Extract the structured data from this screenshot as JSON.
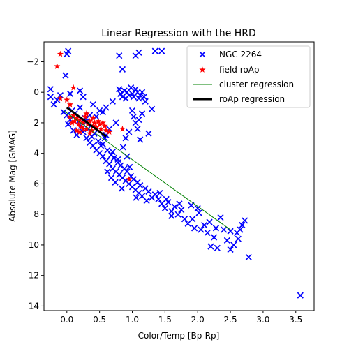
{
  "chart_data": {
    "type": "scatter",
    "title": "Linear Regression with the HRD",
    "xlabel": "Color/Temp [Bp-Rp]",
    "ylabel": "Absolute Mag [GMAG]",
    "xlim": [
      -0.35,
      3.78
    ],
    "ylim": [
      14.3,
      -3.3
    ],
    "y_inverted": true,
    "x_ticks": [
      0.0,
      0.5,
      1.0,
      1.5,
      2.0,
      2.5,
      3.0,
      3.5
    ],
    "x_tick_labels": [
      "0.0",
      "0.5",
      "1.0",
      "1.5",
      "2.0",
      "2.5",
      "3.0",
      "3.5"
    ],
    "y_ticks": [
      -2,
      0,
      2,
      4,
      6,
      8,
      10,
      12,
      14
    ],
    "y_tick_labels": [
      "−2",
      "0",
      "2",
      "4",
      "6",
      "8",
      "10",
      "12",
      "14"
    ],
    "grid": false,
    "legend": {
      "position": "top-right",
      "entries": [
        {
          "label": "NGC 2264",
          "marker": "x",
          "color": "#0000ff"
        },
        {
          "label": "field roAp",
          "marker": "star",
          "color": "#ff0000"
        },
        {
          "label": "cluster regression",
          "marker": "line",
          "color": "#008000"
        },
        {
          "label": "roAp regression",
          "marker": "thick-line",
          "color": "#000000"
        }
      ]
    },
    "series": [
      {
        "name": "NGC 2264",
        "marker": "x",
        "color": "#0000ff",
        "points": [
          [
            -0.25,
            -0.2
          ],
          [
            -0.25,
            0.3
          ],
          [
            -0.2,
            0.8
          ],
          [
            -0.15,
            0.5
          ],
          [
            -0.1,
            0.2
          ],
          [
            -0.05,
            1.3
          ],
          [
            -0.02,
            -1.1
          ],
          [
            0.0,
            -2.5
          ],
          [
            0.02,
            -2.7
          ],
          [
            0.05,
            0.1
          ],
          [
            0.0,
            1.5
          ],
          [
            0.02,
            2.1
          ],
          [
            0.05,
            1.8
          ],
          [
            0.08,
            1.2
          ],
          [
            0.1,
            2.5
          ],
          [
            0.12,
            1.4
          ],
          [
            0.15,
            2.8
          ],
          [
            0.18,
            1.9
          ],
          [
            0.2,
            -0.1
          ],
          [
            0.22,
            2.2
          ],
          [
            0.25,
            2.6
          ],
          [
            0.28,
            1.7
          ],
          [
            0.3,
            3.0
          ],
          [
            0.32,
            2.4
          ],
          [
            0.35,
            3.3
          ],
          [
            0.38,
            2.9
          ],
          [
            0.4,
            3.5
          ],
          [
            0.42,
            2.7
          ],
          [
            0.45,
            3.8
          ],
          [
            0.48,
            3.2
          ],
          [
            0.5,
            4.0
          ],
          [
            0.52,
            3.5
          ],
          [
            0.55,
            4.2
          ],
          [
            0.58,
            3.0
          ],
          [
            0.6,
            4.5
          ],
          [
            0.62,
            3.8
          ],
          [
            0.65,
            4.7
          ],
          [
            0.68,
            4.1
          ],
          [
            0.7,
            5.0
          ],
          [
            0.72,
            4.3
          ],
          [
            0.75,
            5.2
          ],
          [
            0.78,
            4.6
          ],
          [
            0.8,
            5.4
          ],
          [
            0.82,
            4.8
          ],
          [
            0.85,
            5.6
          ],
          [
            0.88,
            5.0
          ],
          [
            0.9,
            5.8
          ],
          [
            0.92,
            5.2
          ],
          [
            0.95,
            6.0
          ],
          [
            0.98,
            5.5
          ],
          [
            1.0,
            6.2
          ],
          [
            1.02,
            5.7
          ],
          [
            1.05,
            6.4
          ],
          [
            1.08,
            5.9
          ],
          [
            1.1,
            6.6
          ],
          [
            1.12,
            6.1
          ],
          [
            1.15,
            6.8
          ],
          [
            1.2,
            6.3
          ],
          [
            1.25,
            6.5
          ],
          [
            1.3,
            6.9
          ],
          [
            1.35,
            6.7
          ],
          [
            1.4,
            7.0
          ],
          [
            1.45,
            7.3
          ],
          [
            1.5,
            7.6
          ],
          [
            1.55,
            7.2
          ],
          [
            1.6,
            7.8
          ],
          [
            1.65,
            7.5
          ],
          [
            1.7,
            8.0
          ],
          [
            1.75,
            7.7
          ],
          [
            1.8,
            8.3
          ],
          [
            1.85,
            8.6
          ],
          [
            1.9,
            7.4
          ],
          [
            1.95,
            8.9
          ],
          [
            2.0,
            7.6
          ],
          [
            2.05,
            9.0
          ],
          [
            2.1,
            8.7
          ],
          [
            2.15,
            9.2
          ],
          [
            2.2,
            10.1
          ],
          [
            2.25,
            9.5
          ],
          [
            2.3,
            10.2
          ],
          [
            2.35,
            8.2
          ],
          [
            2.4,
            9.0
          ],
          [
            2.45,
            9.7
          ],
          [
            2.5,
            10.3
          ],
          [
            2.55,
            10.0
          ],
          [
            2.6,
            9.2
          ],
          [
            2.65,
            9.0
          ],
          [
            2.68,
            8.7
          ],
          [
            2.72,
            8.4
          ],
          [
            2.78,
            10.8
          ],
          [
            3.57,
            13.3
          ],
          [
            0.8,
            -0.2
          ],
          [
            0.82,
            0.1
          ],
          [
            0.85,
            0.3
          ],
          [
            0.88,
            -0.1
          ],
          [
            0.9,
            0.4
          ],
          [
            0.92,
            0.0
          ],
          [
            0.95,
            0.2
          ],
          [
            0.98,
            -0.3
          ],
          [
            1.0,
            0.1
          ],
          [
            1.02,
            0.3
          ],
          [
            1.05,
            -0.2
          ],
          [
            1.08,
            0.0
          ],
          [
            1.1,
            0.4
          ],
          [
            1.12,
            0.2
          ],
          [
            1.15,
            0.0
          ],
          [
            1.18,
            0.3
          ],
          [
            1.2,
            0.6
          ],
          [
            1.0,
            1.2
          ],
          [
            1.02,
            1.6
          ],
          [
            1.05,
            2.0
          ],
          [
            1.08,
            2.4
          ],
          [
            1.1,
            1.8
          ],
          [
            1.12,
            3.1
          ],
          [
            1.15,
            1.4
          ],
          [
            0.95,
            2.6
          ],
          [
            0.9,
            3.0
          ],
          [
            1.05,
            -2.4
          ],
          [
            1.1,
            -2.6
          ],
          [
            1.35,
            -2.7
          ],
          [
            1.45,
            -2.7
          ],
          [
            0.85,
            -1.5
          ],
          [
            0.8,
            -2.4
          ],
          [
            0.7,
            0.6
          ],
          [
            0.6,
            1.0
          ],
          [
            0.55,
            1.3
          ],
          [
            0.5,
            1.2
          ],
          [
            0.45,
            1.6
          ],
          [
            0.4,
            0.8
          ],
          [
            0.35,
            1.5
          ],
          [
            0.3,
            1.9
          ],
          [
            0.25,
            0.3
          ],
          [
            0.2,
            1.0
          ],
          [
            1.3,
            1.1
          ],
          [
            1.25,
            2.7
          ],
          [
            0.75,
            2.0
          ],
          [
            0.65,
            2.4
          ],
          [
            0.6,
            2.8
          ],
          [
            0.55,
            3.4
          ],
          [
            0.7,
            3.9
          ],
          [
            0.78,
            4.4
          ],
          [
            0.86,
            3.6
          ],
          [
            0.92,
            4.2
          ],
          [
            0.96,
            4.9
          ],
          [
            0.62,
            5.2
          ],
          [
            0.68,
            5.6
          ],
          [
            0.74,
            5.9
          ],
          [
            0.84,
            6.3
          ],
          [
            1.06,
            6.9
          ],
          [
            1.22,
            7.1
          ],
          [
            1.42,
            6.6
          ],
          [
            1.6,
            8.1
          ],
          [
            1.92,
            8.3
          ],
          [
            2.18,
            8.5
          ],
          [
            2.28,
            8.9
          ],
          [
            2.5,
            9.1
          ],
          [
            2.62,
            9.6
          ],
          [
            2.02,
            7.9
          ],
          [
            1.72,
            7.3
          ],
          [
            1.52,
            7.0
          ]
        ]
      },
      {
        "name": "field roAp",
        "marker": "star",
        "color": "#ff0000",
        "points": [
          [
            -0.1,
            -2.5
          ],
          [
            -0.15,
            -1.7
          ],
          [
            -0.1,
            0.4
          ],
          [
            0.0,
            0.5
          ],
          [
            0.05,
            0.8
          ],
          [
            0.1,
            1.5
          ],
          [
            0.12,
            1.9
          ],
          [
            0.15,
            1.7
          ],
          [
            0.18,
            2.1
          ],
          [
            0.2,
            1.8
          ],
          [
            0.22,
            2.3
          ],
          [
            0.25,
            2.0
          ],
          [
            0.28,
            1.6
          ],
          [
            0.3,
            2.4
          ],
          [
            0.32,
            2.1
          ],
          [
            0.35,
            1.9
          ],
          [
            0.38,
            2.5
          ],
          [
            0.4,
            2.2
          ],
          [
            0.42,
            2.0
          ],
          [
            0.45,
            2.3
          ],
          [
            0.48,
            1.9
          ],
          [
            0.5,
            2.1
          ],
          [
            0.52,
            2.4
          ],
          [
            0.55,
            2.0
          ],
          [
            0.58,
            2.2
          ],
          [
            0.05,
            1.6
          ],
          [
            0.08,
            2.0
          ],
          [
            0.15,
            2.5
          ],
          [
            0.2,
            2.6
          ],
          [
            0.25,
            2.4
          ],
          [
            0.6,
            2.5
          ],
          [
            0.65,
            2.6
          ],
          [
            0.85,
            2.4
          ],
          [
            0.95,
            5.7
          ],
          [
            0.1,
            -0.3
          ],
          [
            0.3,
            1.4
          ],
          [
            0.35,
            2.7
          ],
          [
            0.4,
            1.7
          ]
        ]
      }
    ],
    "lines": [
      {
        "name": "cluster regression",
        "color": "#008000",
        "points": [
          [
            -0.05,
            1.2
          ],
          [
            2.5,
            9.0
          ]
        ]
      },
      {
        "name": "roAp regression",
        "color": "#000000",
        "points": [
          [
            0.0,
            1.0
          ],
          [
            0.6,
            2.9
          ]
        ]
      }
    ]
  }
}
